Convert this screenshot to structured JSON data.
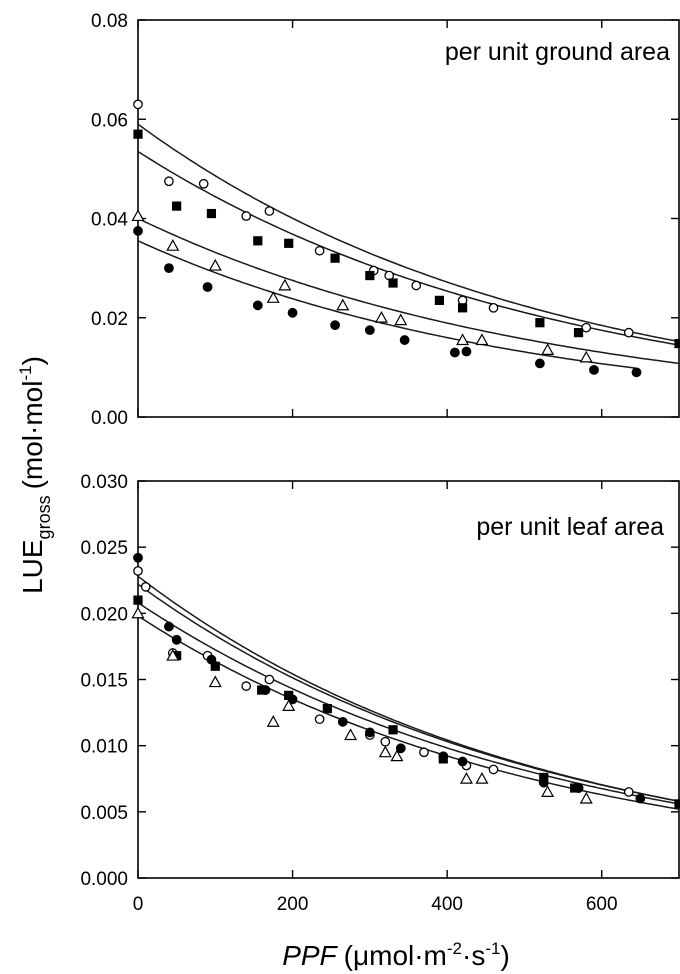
{
  "figure": {
    "ylabel_main": "LUE",
    "ylabel_sub": "gross",
    "ylabel_unit_open": "(mol·mol",
    "ylabel_unit_exp": "-1",
    "ylabel_unit_close": ")",
    "xlabel_var": "PPF",
    "xlabel_unit_a": "(μmol·m",
    "xlabel_exp1": "-2",
    "xlabel_unit_b": "·s",
    "xlabel_exp2": "-1",
    "xlabel_unit_c": ")"
  },
  "chart_data": [
    {
      "type": "scatter",
      "annotation": "per unit ground area",
      "xlim": [
        0,
        700
      ],
      "ylim": [
        0,
        0.08
      ],
      "xticks": [
        "0",
        "200",
        "400",
        "600"
      ],
      "yticks": [
        "0.00",
        "0.02",
        "0.04",
        "0.06",
        "0.08"
      ],
      "series": [
        {
          "marker": "open-circle",
          "points": [
            [
              0,
              0.063
            ],
            [
              40,
              0.0475
            ],
            [
              85,
              0.047
            ],
            [
              140,
              0.0405
            ],
            [
              170,
              0.0415
            ],
            [
              235,
              0.0335
            ],
            [
              305,
              0.0295
            ],
            [
              325,
              0.0285
            ],
            [
              360,
              0.0265
            ],
            [
              420,
              0.0235
            ],
            [
              460,
              0.022
            ],
            [
              580,
              0.018
            ],
            [
              635,
              0.017
            ]
          ],
          "fit": {
            "y0": 0.059,
            "y700": 0.0152
          }
        },
        {
          "marker": "filled-square",
          "points": [
            [
              0,
              0.057
            ],
            [
              50,
              0.0425
            ],
            [
              95,
              0.041
            ],
            [
              155,
              0.0355
            ],
            [
              195,
              0.035
            ],
            [
              255,
              0.032
            ],
            [
              300,
              0.0285
            ],
            [
              330,
              0.027
            ],
            [
              390,
              0.0235
            ],
            [
              420,
              0.022
            ],
            [
              520,
              0.019
            ],
            [
              570,
              0.017
            ],
            [
              700,
              0.0148
            ]
          ],
          "fit": {
            "y0": 0.0535,
            "y700": 0.0145
          }
        },
        {
          "marker": "open-triangle",
          "points": [
            [
              0,
              0.0405
            ],
            [
              45,
              0.0345
            ],
            [
              100,
              0.0305
            ],
            [
              175,
              0.024
            ],
            [
              190,
              0.0265
            ],
            [
              265,
              0.0225
            ],
            [
              315,
              0.02
            ],
            [
              340,
              0.0195
            ],
            [
              420,
              0.0155
            ],
            [
              445,
              0.0155
            ],
            [
              530,
              0.0135
            ],
            [
              580,
              0.012
            ]
          ],
          "fit": {
            "y0": 0.04,
            "y700": 0.0108
          }
        },
        {
          "marker": "filled-circle",
          "points": [
            [
              0,
              0.0375
            ],
            [
              40,
              0.03
            ],
            [
              90,
              0.0262
            ],
            [
              155,
              0.0225
            ],
            [
              200,
              0.021
            ],
            [
              255,
              0.0185
            ],
            [
              300,
              0.0175
            ],
            [
              345,
              0.0155
            ],
            [
              410,
              0.013
            ],
            [
              425,
              0.0132
            ],
            [
              520,
              0.0108
            ],
            [
              590,
              0.0095
            ],
            [
              645,
              0.009
            ]
          ],
          "fit": {
            "y0": 0.0355,
            "y700": 0.0088,
            "x_end": 645
          }
        }
      ]
    },
    {
      "type": "scatter",
      "annotation": "per unit leaf area",
      "xlim": [
        0,
        700
      ],
      "ylim": [
        0,
        0.03
      ],
      "xticks": [
        "0",
        "200",
        "400",
        "600"
      ],
      "yticks": [
        "0.000",
        "0.005",
        "0.010",
        "0.015",
        "0.020",
        "0.025",
        "0.030"
      ],
      "series": [
        {
          "marker": "open-circle",
          "points": [
            [
              0,
              0.0232
            ],
            [
              10,
              0.022
            ],
            [
              45,
              0.017
            ],
            [
              90,
              0.0168
            ],
            [
              140,
              0.0145
            ],
            [
              170,
              0.015
            ],
            [
              235,
              0.012
            ],
            [
              300,
              0.0108
            ],
            [
              320,
              0.0103
            ],
            [
              370,
              0.0095
            ],
            [
              425,
              0.0085
            ],
            [
              460,
              0.0082
            ],
            [
              570,
              0.0068
            ],
            [
              635,
              0.0065
            ]
          ],
          "fit": {
            "y0": 0.0228,
            "y700": 0.0058
          }
        },
        {
          "marker": "filled-circle",
          "points": [
            [
              0,
              0.0242
            ],
            [
              40,
              0.019
            ],
            [
              50,
              0.018
            ],
            [
              95,
              0.0165
            ],
            [
              165,
              0.0142
            ],
            [
              200,
              0.0135
            ],
            [
              265,
              0.0118
            ],
            [
              300,
              0.011
            ],
            [
              340,
              0.0098
            ],
            [
              395,
              0.0092
            ],
            [
              420,
              0.0088
            ],
            [
              525,
              0.0072
            ],
            [
              570,
              0.0068
            ],
            [
              650,
              0.006
            ]
          ],
          "fit": {
            "y0": 0.0222,
            "y700": 0.0058
          }
        },
        {
          "marker": "filled-square",
          "points": [
            [
              0,
              0.021
            ],
            [
              50,
              0.0168
            ],
            [
              100,
              0.016
            ],
            [
              160,
              0.0142
            ],
            [
              195,
              0.0138
            ],
            [
              245,
              0.0128
            ],
            [
              330,
              0.0112
            ],
            [
              395,
              0.009
            ],
            [
              525,
              0.0076
            ],
            [
              565,
              0.0068
            ],
            [
              700,
              0.0056
            ]
          ],
          "fit": {
            "y0": 0.0208,
            "y700": 0.0056
          }
        },
        {
          "marker": "open-triangle",
          "points": [
            [
              0,
              0.02
            ],
            [
              45,
              0.0168
            ],
            [
              100,
              0.0148
            ],
            [
              175,
              0.0118
            ],
            [
              195,
              0.013
            ],
            [
              275,
              0.0108
            ],
            [
              320,
              0.0095
            ],
            [
              335,
              0.0092
            ],
            [
              425,
              0.0075
            ],
            [
              445,
              0.0075
            ],
            [
              530,
              0.0065
            ],
            [
              580,
              0.006
            ]
          ],
          "fit": {
            "y0": 0.0198,
            "y700": 0.0052
          }
        }
      ]
    }
  ]
}
